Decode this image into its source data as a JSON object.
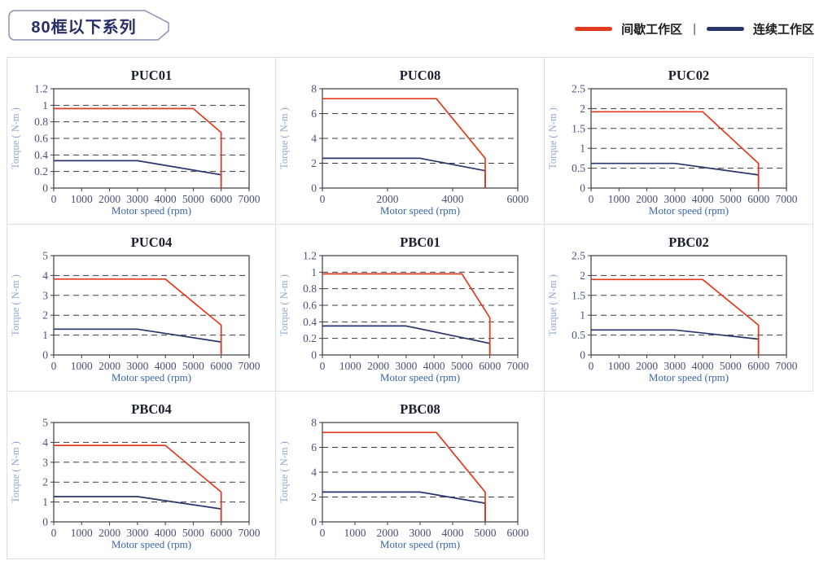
{
  "page": {
    "badge_title": "80框以下系列"
  },
  "legend": {
    "items": [
      {
        "label": "间歇工作区",
        "color": "#e23a1d"
      },
      {
        "label": "连续工作区",
        "color": "#28356b"
      }
    ],
    "separator": "|"
  },
  "chart_style": {
    "axis_color": "#3a3b40",
    "tick_label_color": "#4a5278",
    "title_color": "#1b1f2e",
    "xlabel_color": "#3a67b0",
    "ylabel_color": "#8ba6d4",
    "intermittent_color": "#e23a1d",
    "continuous_color": "#28356b"
  },
  "chart_data": [
    {
      "type": "line",
      "title": "PUC01",
      "xlabel": "Motor speed (rpm)",
      "ylabel": "Torque ( N-m )",
      "xlim": [
        0,
        7000
      ],
      "ylim": [
        0,
        1.2
      ],
      "xticks": [
        0,
        1000,
        2000,
        3000,
        4000,
        5000,
        6000,
        7000
      ],
      "yticks": [
        "0",
        "0.2",
        "0.4",
        "0.6",
        "0.8",
        "1",
        "1.2"
      ],
      "grid": "dashed-horizontal",
      "legend_position": "none",
      "series": [
        {
          "name": "间歇工作区",
          "color": "#e23a1d",
          "points": [
            [
              0,
              0.96
            ],
            [
              5000,
              0.96
            ],
            [
              6000,
              0.67
            ],
            [
              6000,
              0
            ]
          ]
        },
        {
          "name": "连续工作区",
          "color": "#28356b",
          "points": [
            [
              0,
              0.33
            ],
            [
              3000,
              0.33
            ],
            [
              6000,
              0.16
            ],
            [
              6000,
              0
            ]
          ]
        }
      ]
    },
    {
      "type": "line",
      "title": "PUC08",
      "xlabel": "Motor speed (rpm)",
      "ylabel": "Torque ( N-m )",
      "xlim": [
        0,
        6000
      ],
      "ylim": [
        0,
        8
      ],
      "xticks": [
        0,
        2000,
        4000,
        6000
      ],
      "yticks": [
        "0",
        "2",
        "4",
        "6",
        "8"
      ],
      "grid": "dashed-horizontal",
      "legend_position": "none",
      "series": [
        {
          "name": "间歇工作区",
          "color": "#e23a1d",
          "points": [
            [
              0,
              7.2
            ],
            [
              3500,
              7.2
            ],
            [
              5000,
              2.4
            ],
            [
              5000,
              0
            ]
          ]
        },
        {
          "name": "连续工作区",
          "color": "#28356b",
          "points": [
            [
              0,
              2.4
            ],
            [
              3000,
              2.4
            ],
            [
              5000,
              1.4
            ],
            [
              5000,
              0
            ]
          ]
        }
      ]
    },
    {
      "type": "line",
      "title": "PUC02",
      "xlabel": "Motor speed (rpm)",
      "ylabel": "Torque ( N-m )",
      "xlim": [
        0,
        7000
      ],
      "ylim": [
        0,
        2.5
      ],
      "xticks": [
        0,
        1000,
        2000,
        3000,
        4000,
        5000,
        6000,
        7000
      ],
      "yticks": [
        "0",
        "0.5",
        "1",
        "1.5",
        "2",
        "2.5"
      ],
      "grid": "dashed-horizontal",
      "legend_position": "none",
      "series": [
        {
          "name": "间歇工作区",
          "color": "#e23a1d",
          "points": [
            [
              0,
              1.92
            ],
            [
              4000,
              1.92
            ],
            [
              6000,
              0.62
            ],
            [
              6000,
              0
            ]
          ]
        },
        {
          "name": "连续工作区",
          "color": "#28356b",
          "points": [
            [
              0,
              0.62
            ],
            [
              3000,
              0.62
            ],
            [
              6000,
              0.33
            ],
            [
              6000,
              0
            ]
          ]
        }
      ]
    },
    {
      "type": "line",
      "title": "PUC04",
      "xlabel": "Motor speed (rpm)",
      "ylabel": "Torque ( N-m )",
      "xlim": [
        0,
        7000
      ],
      "ylim": [
        0,
        5
      ],
      "xticks": [
        0,
        1000,
        2000,
        3000,
        4000,
        5000,
        6000,
        7000
      ],
      "yticks": [
        "0",
        "1",
        "2",
        "3",
        "4",
        "5"
      ],
      "grid": "dashed-horizontal",
      "legend_position": "none",
      "series": [
        {
          "name": "间歇工作区",
          "color": "#e23a1d",
          "points": [
            [
              0,
              3.82
            ],
            [
              4000,
              3.82
            ],
            [
              6000,
              1.5
            ],
            [
              6000,
              0
            ]
          ]
        },
        {
          "name": "连续工作区",
          "color": "#28356b",
          "points": [
            [
              0,
              1.3
            ],
            [
              3000,
              1.3
            ],
            [
              6000,
              0.65
            ],
            [
              6000,
              0
            ]
          ]
        }
      ]
    },
    {
      "type": "line",
      "title": "PBC01",
      "xlabel": "Motor speed (rpm)",
      "ylabel": "Torque ( N-m )",
      "xlim": [
        0,
        7000
      ],
      "ylim": [
        0,
        1.2
      ],
      "xticks": [
        0,
        1000,
        2000,
        3000,
        4000,
        5000,
        6000,
        7000
      ],
      "yticks": [
        "0",
        "0.2",
        "0.4",
        "0.6",
        "0.8",
        "1",
        "1.2"
      ],
      "grid": "dashed-horizontal",
      "legend_position": "none",
      "series": [
        {
          "name": "间歇工作区",
          "color": "#e23a1d",
          "points": [
            [
              0,
              0.98
            ],
            [
              5000,
              0.98
            ],
            [
              6000,
              0.45
            ],
            [
              6000,
              0
            ]
          ]
        },
        {
          "name": "连续工作区",
          "color": "#28356b",
          "points": [
            [
              0,
              0.35
            ],
            [
              3000,
              0.35
            ],
            [
              6000,
              0.14
            ],
            [
              6000,
              0
            ]
          ]
        }
      ]
    },
    {
      "type": "line",
      "title": "PBC02",
      "xlabel": "Motor speed (rpm)",
      "ylabel": "Torque ( N-m )",
      "xlim": [
        0,
        7000
      ],
      "ylim": [
        0,
        2.5
      ],
      "xticks": [
        0,
        1000,
        2000,
        3000,
        4000,
        5000,
        6000,
        7000
      ],
      "yticks": [
        "0",
        "0.5",
        "1",
        "1.5",
        "2",
        "2.5"
      ],
      "grid": "dashed-horizontal",
      "legend_position": "none",
      "series": [
        {
          "name": "间歇工作区",
          "color": "#e23a1d",
          "points": [
            [
              0,
              1.9
            ],
            [
              4000,
              1.9
            ],
            [
              6000,
              0.75
            ],
            [
              6000,
              0
            ]
          ]
        },
        {
          "name": "连续工作区",
          "color": "#28356b",
          "points": [
            [
              0,
              0.63
            ],
            [
              3000,
              0.63
            ],
            [
              6000,
              0.4
            ],
            [
              6000,
              0
            ]
          ]
        }
      ]
    },
    {
      "type": "line",
      "title": "PBC04",
      "xlabel": "Motor speed (rpm)",
      "ylabel": "Torque ( N-m )",
      "xlim": [
        0,
        7000
      ],
      "ylim": [
        0,
        5
      ],
      "xticks": [
        0,
        1000,
        2000,
        3000,
        4000,
        5000,
        6000,
        7000
      ],
      "yticks": [
        "0",
        "1",
        "2",
        "3",
        "4",
        "5"
      ],
      "grid": "dashed-horizontal",
      "legend_position": "none",
      "series": [
        {
          "name": "间歇工作区",
          "color": "#e23a1d",
          "points": [
            [
              0,
              3.85
            ],
            [
              4000,
              3.85
            ],
            [
              6000,
              1.5
            ],
            [
              6000,
              0
            ]
          ]
        },
        {
          "name": "连续工作区",
          "color": "#28356b",
          "points": [
            [
              0,
              1.27
            ],
            [
              3000,
              1.27
            ],
            [
              6000,
              0.65
            ],
            [
              6000,
              0
            ]
          ]
        }
      ]
    },
    {
      "type": "line",
      "title": "PBC08",
      "xlabel": "Motor speed (rpm)",
      "ylabel": "Torque ( N-m )",
      "xlim": [
        0,
        6000
      ],
      "ylim": [
        0,
        8
      ],
      "xticks": [
        0,
        1000,
        2000,
        3000,
        4000,
        5000,
        6000
      ],
      "yticks": [
        "0",
        "2",
        "4",
        "6",
        "8"
      ],
      "grid": "dashed-horizontal",
      "legend_position": "none",
      "series": [
        {
          "name": "间歇工作区",
          "color": "#e23a1d",
          "points": [
            [
              0,
              7.2
            ],
            [
              3500,
              7.2
            ],
            [
              5000,
              2.4
            ],
            [
              5000,
              0
            ]
          ]
        },
        {
          "name": "连续工作区",
          "color": "#28356b",
          "points": [
            [
              0,
              2.4
            ],
            [
              3000,
              2.4
            ],
            [
              5000,
              1.5
            ],
            [
              5000,
              0
            ]
          ]
        }
      ]
    }
  ]
}
